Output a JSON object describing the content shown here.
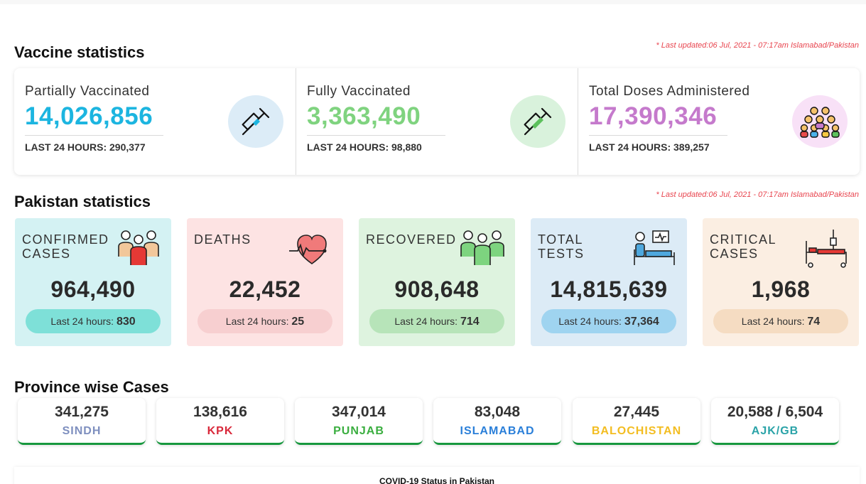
{
  "vaccine": {
    "title": "Vaccine statistics",
    "updated": "* Last updated:06 Jul, 2021 - 07:17am Islamabad/Pakistan",
    "items": [
      {
        "label": "Partially Vaccinated",
        "value": "14,026,856",
        "sub": "LAST 24 HOURS: 290,377",
        "color": "#1cb5e0",
        "icon": "syringe-icon",
        "icon_bg": "#dcecf7"
      },
      {
        "label": "Fully Vaccinated",
        "value": "3,363,490",
        "sub": "LAST 24 HOURS: 98,880",
        "color": "#7fd37f",
        "icon": "syringe-icon",
        "icon_bg": "#d9f2dc"
      },
      {
        "label": "Total Doses Administered",
        "value": "17,390,346",
        "sub": "LAST 24 HOURS: 389,257",
        "color": "#c57acc",
        "icon": "crowd-icon",
        "icon_bg": "#f8e1f7"
      }
    ]
  },
  "pakistan": {
    "title": "Pakistan statistics",
    "updated": "* Last updated:06 Jul, 2021 - 07:17am Islamabad/Pakistan",
    "cards": [
      {
        "label_line1": "CONFIRMED",
        "label_line2": "CASES",
        "value": "964,490",
        "pill_text": "Last 24 hours: ",
        "pill_value": "830",
        "bg": "#d4f2f3",
        "pill_bg": "#7ee0d8",
        "icon": "people-icon"
      },
      {
        "label_line1": "DEATHS",
        "label_line2": "",
        "value": "22,452",
        "pill_text": "Last 24 hours: ",
        "pill_value": "25",
        "bg": "#fde3e3",
        "pill_bg": "#f7cfd0",
        "icon": "heartbeat-icon"
      },
      {
        "label_line1": "RECOVERED",
        "label_line2": "",
        "value": "908,648",
        "pill_text": "Last 24 hours: ",
        "pill_value": "714",
        "bg": "#def3df",
        "pill_bg": "#b7e4b9",
        "icon": "recovered-people-icon"
      },
      {
        "label_line1": "TOTAL",
        "label_line2": "TESTS",
        "value": "14,815,639",
        "pill_text": "Last 24 hours: ",
        "pill_value": "37,364",
        "bg": "#dcebf6",
        "pill_bg": "#9fd4f0",
        "icon": "patient-monitor-icon"
      },
      {
        "label_line1": "CRITICAL",
        "label_line2": "CASES",
        "value": "1,968",
        "pill_text": "Last 24 hours: ",
        "pill_value": "74",
        "bg": "#fbeee2",
        "pill_bg": "#f5dcc2",
        "icon": "hospital-bed-icon"
      }
    ]
  },
  "provinces": {
    "title": "Province wise Cases",
    "items": [
      {
        "value": "341,275",
        "name": "SINDH",
        "color": "#7e8fbf"
      },
      {
        "value": "138,616",
        "name": "KPK",
        "color": "#d9283a"
      },
      {
        "value": "347,014",
        "name": "PUNJAB",
        "color": "#3aae3f"
      },
      {
        "value": "83,048",
        "name": "ISLAMABAD",
        "color": "#2a7fd9"
      },
      {
        "value": "27,445",
        "name": "BALOCHISTAN",
        "color": "#f3bd21"
      },
      {
        "value": "20,588 / 6,504",
        "name": "AJK/GB",
        "color": "#2aa3a8"
      }
    ]
  },
  "footer": {
    "title": "COVID-19 Status in Pakistan"
  }
}
